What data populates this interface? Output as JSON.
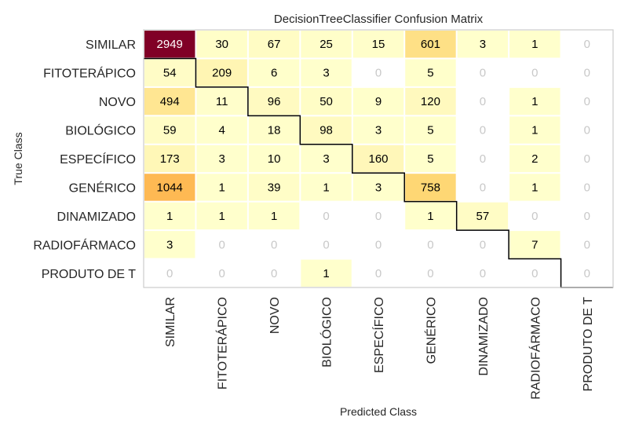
{
  "chart_data": {
    "type": "heatmap",
    "title": "DecisionTreeClassifier Confusion Matrix",
    "xlabel": "Predicted Class",
    "ylabel": "True Class",
    "classes": [
      "SIMILAR",
      "FITOTERÁPICO",
      "NOVO",
      "BIOLÓGICO",
      "ESPECÍFICO",
      "GENÉRICO",
      "DINAMIZADO",
      "RADIOFÁRMACO",
      "PRODUTO DE T"
    ],
    "matrix": [
      [
        2949,
        30,
        67,
        25,
        15,
        601,
        3,
        1,
        0
      ],
      [
        54,
        209,
        6,
        3,
        0,
        5,
        0,
        0,
        0
      ],
      [
        494,
        11,
        96,
        50,
        9,
        120,
        0,
        1,
        0
      ],
      [
        59,
        4,
        18,
        98,
        3,
        5,
        0,
        1,
        0
      ],
      [
        173,
        3,
        10,
        3,
        160,
        5,
        0,
        2,
        0
      ],
      [
        1044,
        1,
        39,
        1,
        3,
        758,
        0,
        1,
        0
      ],
      [
        1,
        1,
        1,
        0,
        0,
        1,
        57,
        0,
        0
      ],
      [
        3,
        0,
        0,
        0,
        0,
        0,
        0,
        7,
        0
      ],
      [
        0,
        0,
        0,
        1,
        0,
        0,
        0,
        0,
        0
      ]
    ],
    "colormap": "YlOrRd",
    "zero_cell_color": "#ffffff",
    "zero_text_color": "#c8c8c8",
    "grid": false,
    "diagonal_highlight": true
  }
}
